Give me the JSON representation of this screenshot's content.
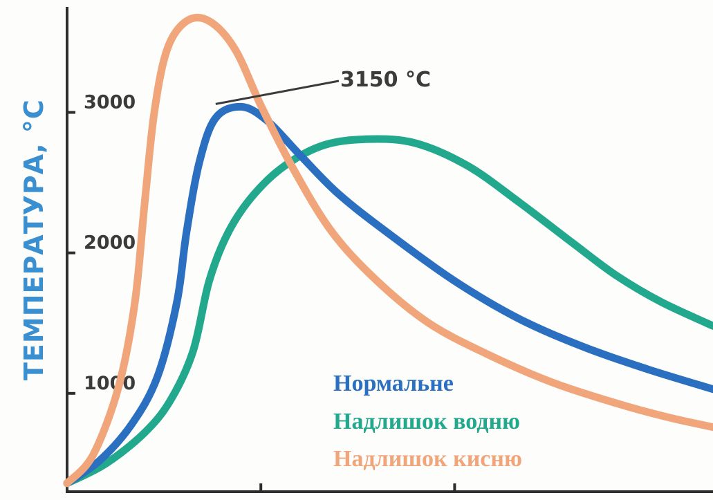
{
  "chart_data": {
    "type": "line",
    "title": "",
    "xlabel": "",
    "ylabel": "ТЕМПЕРАТУРА, °С",
    "ylim": [
      300,
      3800
    ],
    "xlim": [
      0,
      10
    ],
    "y_ticks": [
      {
        "value": 1000,
        "label": "1000"
      },
      {
        "value": 2000,
        "label": "2000"
      },
      {
        "value": 3000,
        "label": "3000"
      }
    ],
    "x_ticks": [
      {
        "value": 3
      },
      {
        "value": 6
      }
    ],
    "annotation": {
      "text": "3150 °С",
      "x": 2.3,
      "y": 3040
    },
    "legend_position": "bottom-center",
    "series": [
      {
        "name": "Нормальне",
        "color": "#2a6fc0",
        "points": [
          [
            0,
            360
          ],
          [
            0.5,
            520
          ],
          [
            1,
            780
          ],
          [
            1.4,
            1120
          ],
          [
            1.7,
            1650
          ],
          [
            1.85,
            2150
          ],
          [
            2.05,
            2650
          ],
          [
            2.3,
            2960
          ],
          [
            2.7,
            3040
          ],
          [
            3.1,
            2940
          ],
          [
            3.6,
            2700
          ],
          [
            4.2,
            2420
          ],
          [
            5,
            2130
          ],
          [
            6,
            1800
          ],
          [
            7,
            1530
          ],
          [
            8,
            1330
          ],
          [
            9,
            1170
          ],
          [
            10,
            1030
          ]
        ]
      },
      {
        "name": "Надлишок водню",
        "color": "#22a88c",
        "points": [
          [
            0,
            360
          ],
          [
            0.6,
            500
          ],
          [
            1.2,
            720
          ],
          [
            1.6,
            950
          ],
          [
            1.95,
            1300
          ],
          [
            2.2,
            1800
          ],
          [
            2.5,
            2150
          ],
          [
            2.9,
            2420
          ],
          [
            3.4,
            2630
          ],
          [
            4,
            2770
          ],
          [
            4.7,
            2810
          ],
          [
            5.4,
            2780
          ],
          [
            6.2,
            2620
          ],
          [
            7,
            2360
          ],
          [
            7.8,
            2080
          ],
          [
            8.5,
            1840
          ],
          [
            9.2,
            1650
          ],
          [
            10,
            1480
          ]
        ]
      },
      {
        "name": "Надлишок кисню",
        "color": "#f0a57a",
        "points": [
          [
            0,
            360
          ],
          [
            0.4,
            560
          ],
          [
            0.8,
            1050
          ],
          [
            1.05,
            1650
          ],
          [
            1.2,
            2350
          ],
          [
            1.35,
            3000
          ],
          [
            1.55,
            3450
          ],
          [
            1.85,
            3650
          ],
          [
            2.2,
            3650
          ],
          [
            2.6,
            3450
          ],
          [
            3.0,
            3050
          ],
          [
            3.5,
            2600
          ],
          [
            4.1,
            2150
          ],
          [
            4.8,
            1800
          ],
          [
            5.6,
            1500
          ],
          [
            6.5,
            1280
          ],
          [
            7.5,
            1080
          ],
          [
            8.5,
            930
          ],
          [
            9.3,
            830
          ],
          [
            10,
            760
          ]
        ]
      }
    ]
  }
}
